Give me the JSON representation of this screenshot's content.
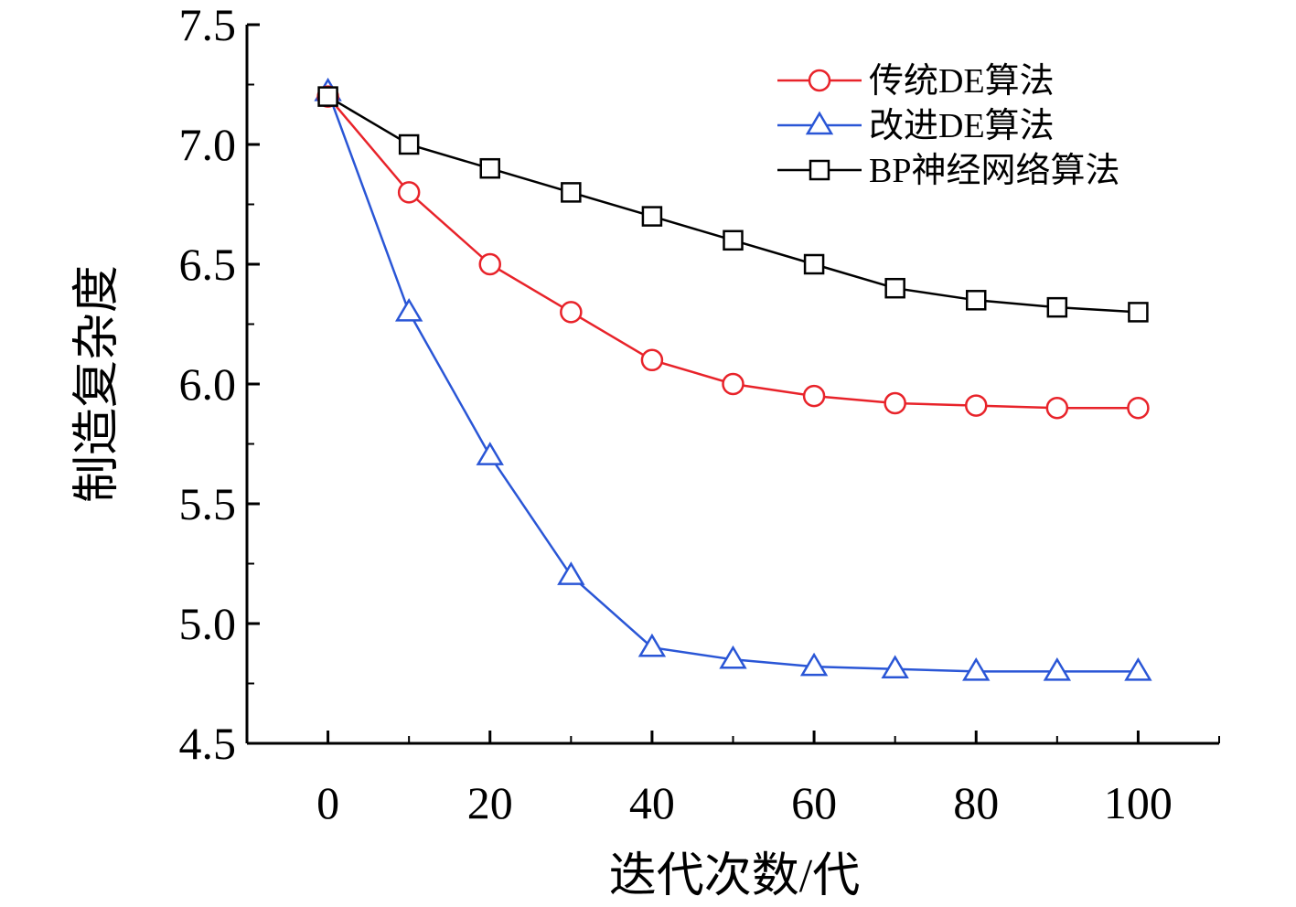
{
  "chart_data": {
    "type": "line",
    "title": "",
    "xlabel": "迭代次数/代",
    "ylabel": "制造复杂度",
    "xlim": [
      -10,
      110
    ],
    "ylim": [
      4.5,
      7.5
    ],
    "xticks": [
      0,
      20,
      40,
      60,
      80,
      100
    ],
    "xtick_labels": [
      "0",
      "20",
      "40",
      "60",
      "80",
      "100"
    ],
    "yticks": [
      4.5,
      5.0,
      5.5,
      6.0,
      6.5,
      7.0,
      7.5
    ],
    "ytick_labels": [
      "4.5",
      "5.0",
      "5.5",
      "6.0",
      "6.5",
      "7.0",
      "7.5"
    ],
    "grid": false,
    "legend_position": "top-right",
    "x": [
      0,
      10,
      20,
      30,
      40,
      50,
      60,
      70,
      80,
      90,
      100
    ],
    "series": [
      {
        "name": "传统DE算法",
        "color": "#e8232a",
        "marker": "circle",
        "values": [
          7.2,
          6.8,
          6.5,
          6.3,
          6.1,
          6.0,
          5.95,
          5.92,
          5.91,
          5.9,
          5.9
        ]
      },
      {
        "name": "改进DE算法",
        "color": "#2a56d6",
        "marker": "triangle",
        "values": [
          7.22,
          6.3,
          5.7,
          5.2,
          4.9,
          4.85,
          4.82,
          4.81,
          4.8,
          4.8,
          4.8
        ]
      },
      {
        "name": "BP神经网络算法",
        "color": "#000000",
        "marker": "square",
        "values": [
          7.2,
          7.0,
          6.9,
          6.8,
          6.7,
          6.6,
          6.5,
          6.4,
          6.35,
          6.32,
          6.3
        ]
      }
    ]
  }
}
